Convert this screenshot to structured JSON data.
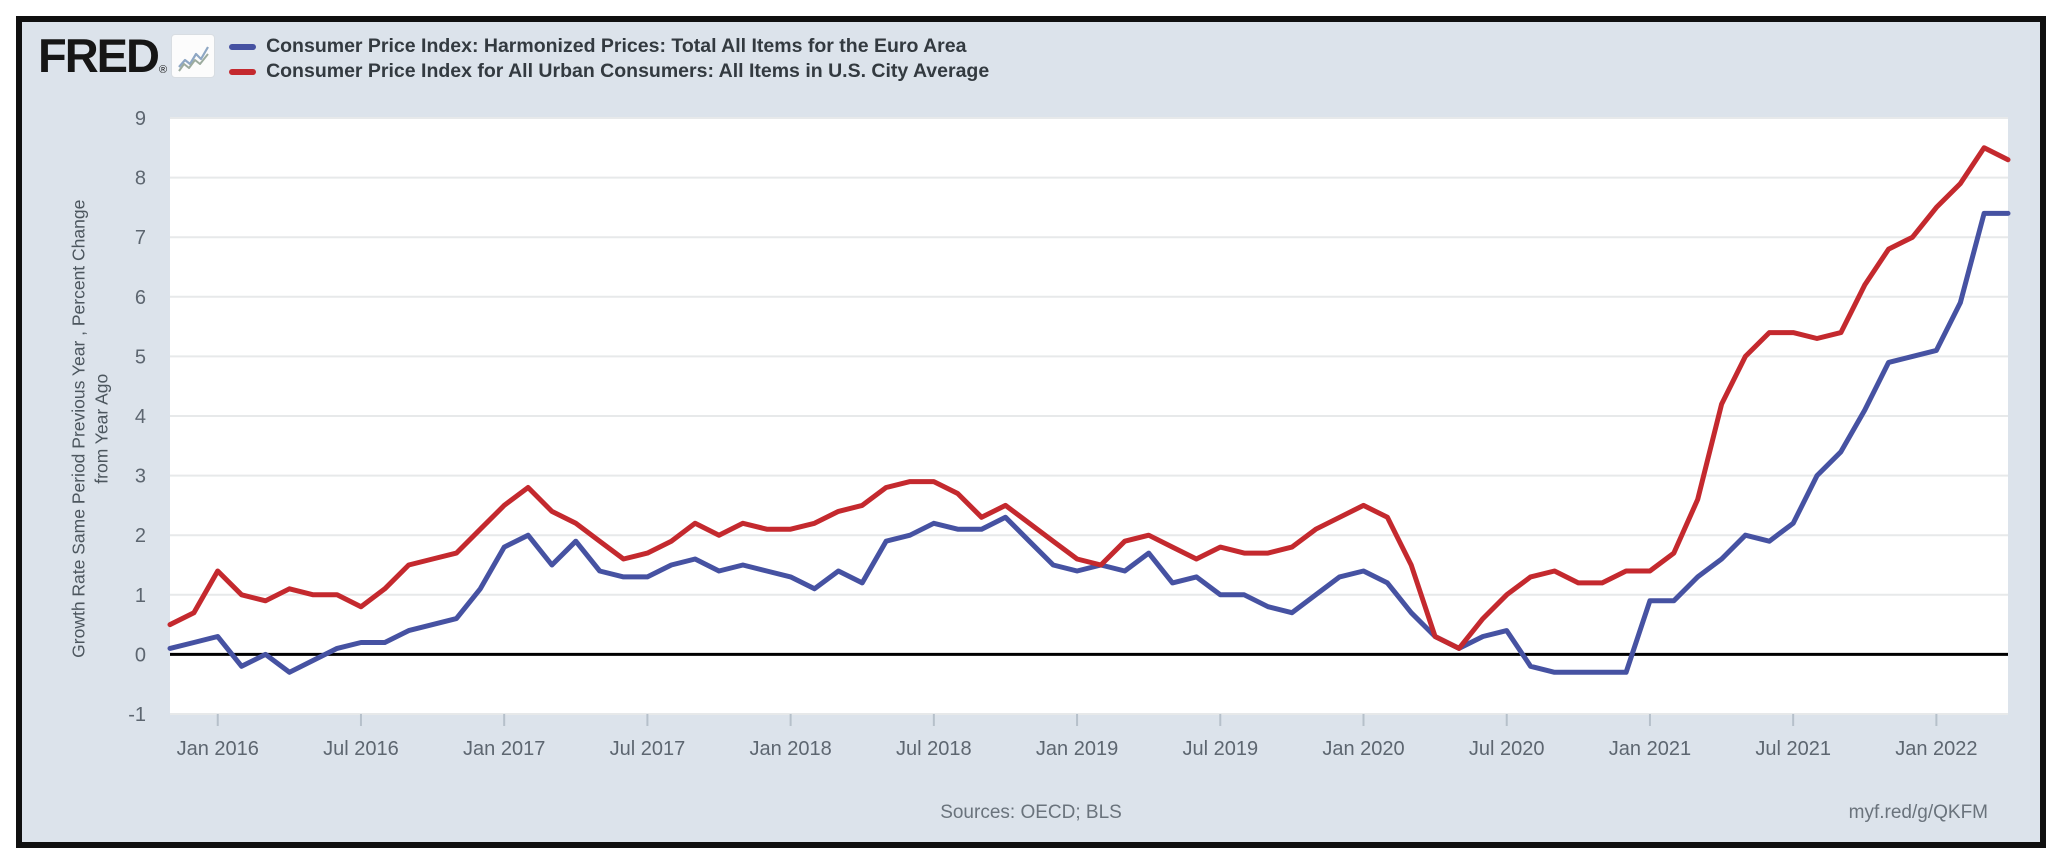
{
  "header": {
    "logo_text": "FRED",
    "logo_registered": "®",
    "chart_icon": "fred-sparkline-icon"
  },
  "footer": {
    "sources": "Sources: OECD; BLS",
    "link": "myf.red/g/QKFM"
  },
  "colors": {
    "background": "#dce3eb",
    "plot_background": "#ffffff",
    "gridline": "#e7e9ea",
    "zero_line": "#000000",
    "axis_text": "#5d6670",
    "tick_mark": "#b6c0ca",
    "euro_area_line": "#4652a2",
    "us_line": "#c4292e"
  },
  "chart_data": {
    "type": "line",
    "title": "",
    "ylabel": "Growth Rate Same Period Previous Year , Percent Change\nfrom Year Ago",
    "xlabel": "",
    "ylim": [
      -1,
      9
    ],
    "yticks": [
      -1,
      0,
      1,
      2,
      3,
      4,
      5,
      6,
      7,
      8,
      9
    ],
    "grid": "horizontal",
    "zero_line": true,
    "frequency": "monthly",
    "x_start": "2015-11",
    "x_end": "2022-04",
    "xticks": [
      {
        "index": 2,
        "label": "Jan 2016"
      },
      {
        "index": 8,
        "label": "Jul 2016"
      },
      {
        "index": 14,
        "label": "Jan 2017"
      },
      {
        "index": 20,
        "label": "Jul 2017"
      },
      {
        "index": 26,
        "label": "Jan 2018"
      },
      {
        "index": 32,
        "label": "Jul 2018"
      },
      {
        "index": 38,
        "label": "Jan 2019"
      },
      {
        "index": 44,
        "label": "Jul 2019"
      },
      {
        "index": 50,
        "label": "Jan 2020"
      },
      {
        "index": 56,
        "label": "Jul 2020"
      },
      {
        "index": 62,
        "label": "Jan 2021"
      },
      {
        "index": 68,
        "label": "Jul 2021"
      },
      {
        "index": 74,
        "label": "Jan 2022"
      }
    ],
    "series": [
      {
        "key": "euro-area",
        "name": "Consumer Price Index: Harmonized Prices: Total All Items for the Euro Area",
        "color": "#4652a2",
        "values": [
          0.1,
          0.2,
          0.3,
          -0.2,
          0.0,
          -0.3,
          -0.1,
          0.1,
          0.2,
          0.2,
          0.4,
          0.5,
          0.6,
          1.1,
          1.8,
          2.0,
          1.5,
          1.9,
          1.4,
          1.3,
          1.3,
          1.5,
          1.6,
          1.4,
          1.5,
          1.4,
          1.3,
          1.1,
          1.4,
          1.2,
          1.9,
          2.0,
          2.2,
          2.1,
          2.1,
          2.3,
          1.9,
          1.5,
          1.4,
          1.5,
          1.4,
          1.7,
          1.2,
          1.3,
          1.0,
          1.0,
          0.8,
          0.7,
          1.0,
          1.3,
          1.4,
          1.2,
          0.7,
          0.3,
          0.1,
          0.3,
          0.4,
          -0.2,
          -0.3,
          -0.3,
          -0.3,
          -0.3,
          0.9,
          0.9,
          1.3,
          1.6,
          2.0,
          1.9,
          2.2,
          3.0,
          3.4,
          4.1,
          4.9,
          5.0,
          5.1,
          5.9,
          7.4,
          7.4
        ]
      },
      {
        "key": "us-city-average",
        "name": "Consumer Price Index for All Urban Consumers: All Items in U.S. City Average",
        "color": "#c4292e",
        "values": [
          0.5,
          0.7,
          1.4,
          1.0,
          0.9,
          1.1,
          1.0,
          1.0,
          0.8,
          1.1,
          1.5,
          1.6,
          1.7,
          2.1,
          2.5,
          2.8,
          2.4,
          2.2,
          1.9,
          1.6,
          1.7,
          1.9,
          2.2,
          2.0,
          2.2,
          2.1,
          2.1,
          2.2,
          2.4,
          2.5,
          2.8,
          2.9,
          2.9,
          2.7,
          2.3,
          2.5,
          2.2,
          1.9,
          1.6,
          1.5,
          1.9,
          2.0,
          1.8,
          1.6,
          1.8,
          1.7,
          1.7,
          1.8,
          2.1,
          2.3,
          2.5,
          2.3,
          1.5,
          0.3,
          0.1,
          0.6,
          1.0,
          1.3,
          1.4,
          1.2,
          1.2,
          1.4,
          1.4,
          1.7,
          2.6,
          4.2,
          5.0,
          5.4,
          5.4,
          5.3,
          5.4,
          6.2,
          6.8,
          7.0,
          7.5,
          7.9,
          8.5,
          8.3
        ]
      }
    ]
  }
}
